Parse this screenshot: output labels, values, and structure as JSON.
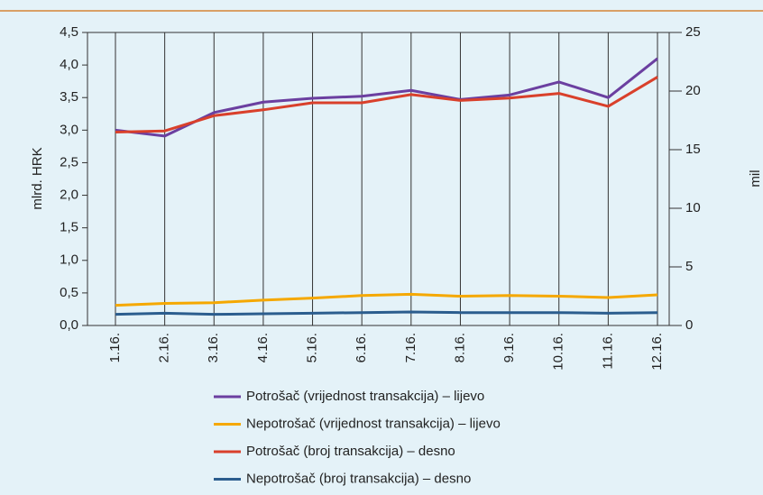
{
  "chart_data": {
    "type": "line",
    "ylabel": "mlrd. HRK",
    "y2label": "mil",
    "categories": [
      "1.16.",
      "2.16.",
      "3.16.",
      "4.16.",
      "5.16.",
      "6.16.",
      "7.16.",
      "8.16.",
      "9.16.",
      "10.16.",
      "11.16.",
      "12.16."
    ],
    "series": [
      {
        "name": "Potrošač (vrijednost transakcija) – lijevo",
        "color": "#6b3fa0",
        "values": [
          3.0,
          2.91,
          3.27,
          3.43,
          3.49,
          3.52,
          3.61,
          3.47,
          3.54,
          3.74,
          3.5,
          4.1
        ]
      },
      {
        "name": "Nepotrošač (vrijednost transakcija) – lijevo",
        "color": "#f5a800",
        "values": [
          0.31,
          0.34,
          0.35,
          0.39,
          0.42,
          0.46,
          0.48,
          0.45,
          0.46,
          0.45,
          0.43,
          0.47
        ]
      },
      {
        "name": "Potrošač (broj transakcija) – desno",
        "color": "#d9402b",
        "axis": "y2",
        "values": [
          16.5,
          16.6,
          17.9,
          18.4,
          19.0,
          19.0,
          19.7,
          19.2,
          19.4,
          19.8,
          18.7,
          21.2
        ]
      },
      {
        "name": "Nepotrošač (broj transakcija) – desno",
        "color": "#2b5d8e",
        "axis": "y2",
        "values": [
          0.95,
          1.05,
          0.95,
          1.0,
          1.05,
          1.1,
          1.15,
          1.1,
          1.1,
          1.1,
          1.05,
          1.1
        ]
      }
    ],
    "ylim": [
      0,
      4.5
    ],
    "yticks": [
      {
        "value": 0,
        "label": "0,0"
      },
      {
        "value": 0.5,
        "label": "0,5"
      },
      {
        "value": 1,
        "label": "1,0"
      },
      {
        "value": 1.5,
        "label": "1,5"
      },
      {
        "value": 2,
        "label": "2,0"
      },
      {
        "value": 2.5,
        "label": "2,5"
      },
      {
        "value": 3,
        "label": "3,0"
      },
      {
        "value": 3.5,
        "label": "3,5"
      },
      {
        "value": 4,
        "label": "4,0"
      },
      {
        "value": 4.5,
        "label": "4,5"
      }
    ],
    "y2lim": [
      0,
      25
    ],
    "y2ticks": [
      0,
      5,
      10,
      15,
      20,
      25
    ],
    "grid": "x"
  }
}
